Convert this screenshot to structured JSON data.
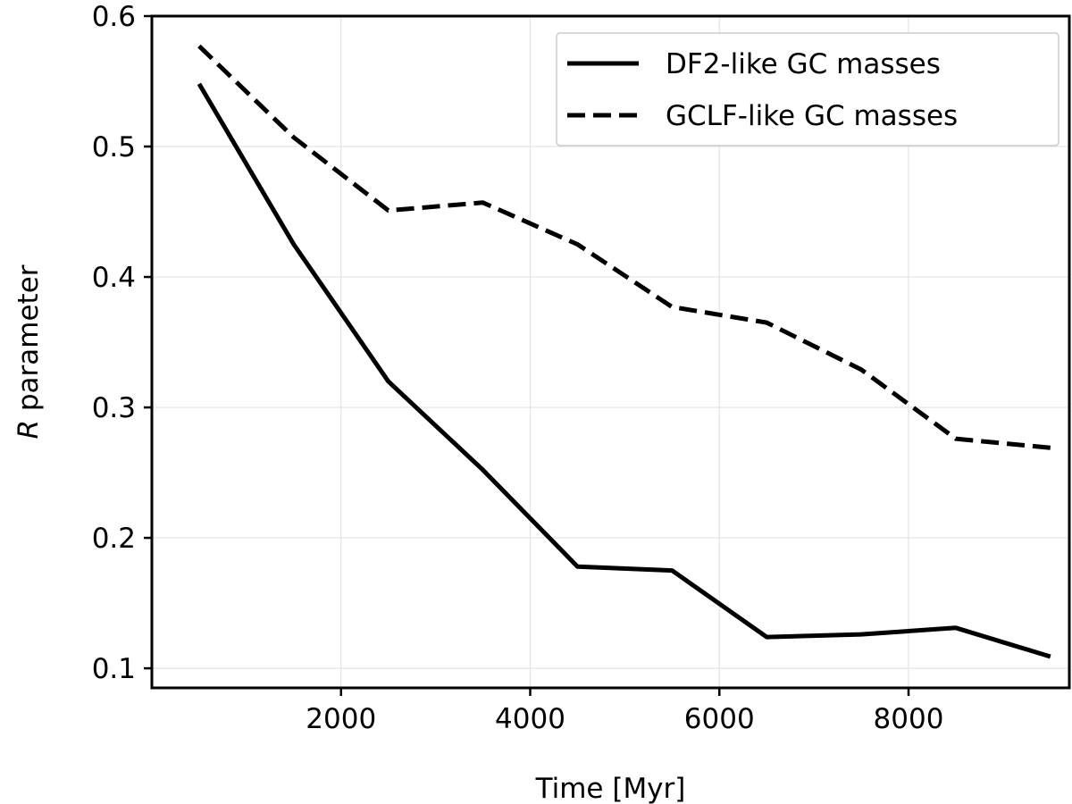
{
  "chart_data": {
    "type": "line",
    "title": "",
    "xlabel": "Time [Myr]",
    "ylabel": "R parameter",
    "ylabel_italic": "R",
    "ylabel_rest": " parameter",
    "xlim": [
      0,
      9700
    ],
    "ylim": [
      0.085,
      0.6
    ],
    "xticks": [
      2000,
      4000,
      6000,
      8000
    ],
    "yticks": [
      0.1,
      0.2,
      0.3,
      0.4,
      0.5,
      0.6
    ],
    "xtick_labels": [
      "2000",
      "4000",
      "6000",
      "8000"
    ],
    "ytick_labels": [
      "0.1",
      "0.2",
      "0.3",
      "0.4",
      "0.5",
      "0.6"
    ],
    "grid": true,
    "legend_position": "top-right",
    "x": [
      500,
      1500,
      2500,
      3500,
      4500,
      5500,
      6500,
      7500,
      8500,
      9500
    ],
    "series": [
      {
        "name": "DF2-like GC masses",
        "style": "solid",
        "color": "#000000",
        "values": [
          0.548,
          0.425,
          0.32,
          0.252,
          0.178,
          0.175,
          0.124,
          0.126,
          0.131,
          0.109
        ]
      },
      {
        "name": "GCLF-like GC masses",
        "style": "dashed",
        "color": "#000000",
        "values": [
          0.577,
          0.507,
          0.451,
          0.457,
          0.425,
          0.377,
          0.365,
          0.329,
          0.276,
          0.269
        ]
      }
    ]
  }
}
